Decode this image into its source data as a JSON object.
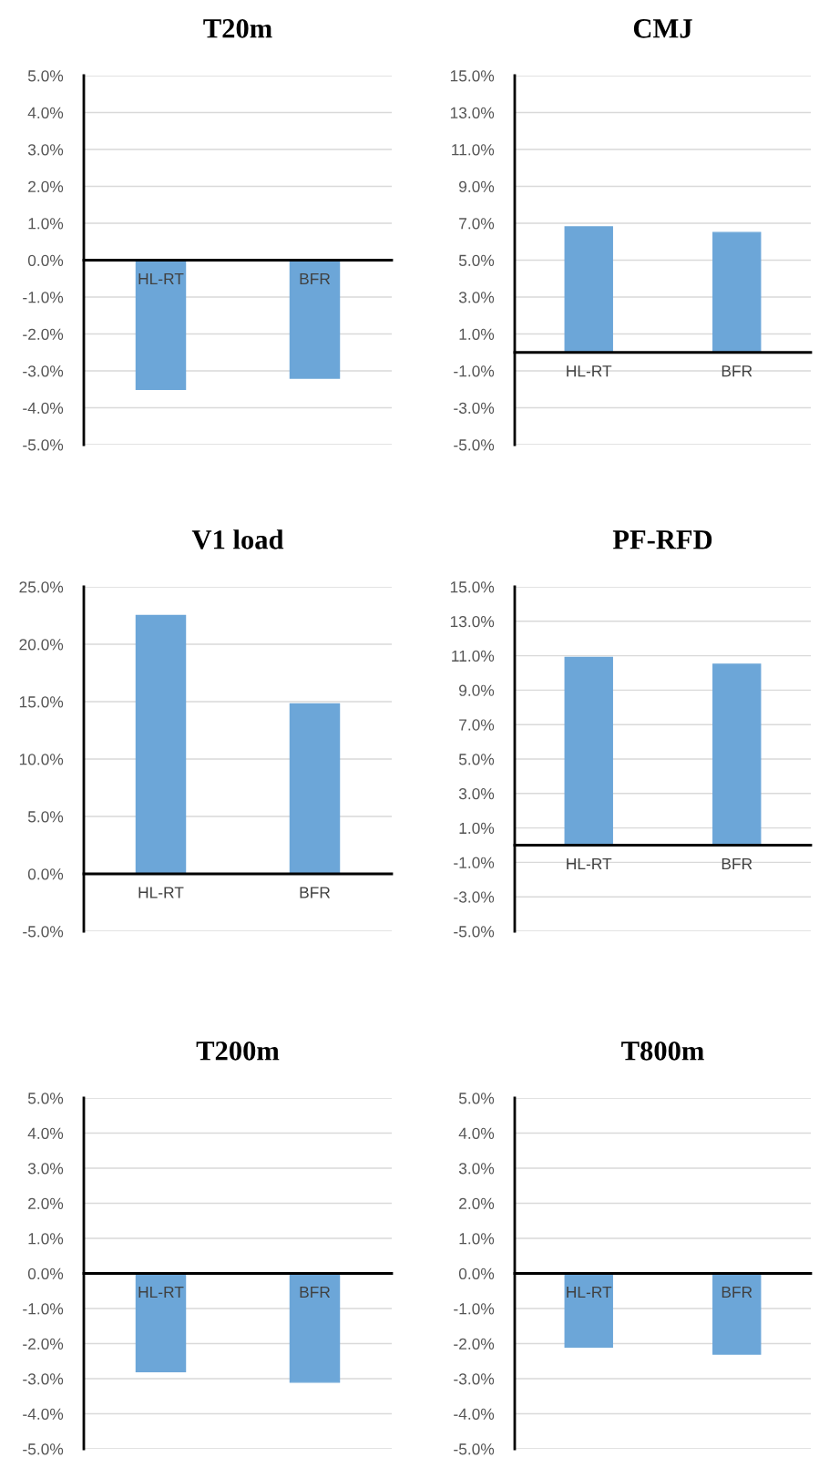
{
  "chart_data": [
    {
      "type": "bar",
      "title": "T20m",
      "categories": [
        "HL-RT",
        "BFR"
      ],
      "values": [
        -3.5,
        -3.2
      ],
      "color": "#6ca6d8",
      "ylim": [
        -5,
        5
      ],
      "yticks": [
        {
          "value": -5,
          "label": "-5.0%"
        },
        {
          "value": -4,
          "label": "-4.0%"
        },
        {
          "value": -3,
          "label": "-3.0%"
        },
        {
          "value": -2,
          "label": "-2.0%"
        },
        {
          "value": -1,
          "label": "-1.0%"
        },
        {
          "value": 0,
          "label": "0.0%"
        },
        {
          "value": 1,
          "label": "1.0%"
        },
        {
          "value": 2,
          "label": "2.0%"
        },
        {
          "value": 3,
          "label": "3.0%"
        },
        {
          "value": 4,
          "label": "4.0%"
        },
        {
          "value": 5,
          "label": "5.0%"
        }
      ],
      "grid": "y"
    },
    {
      "type": "bar",
      "title": "CMJ",
      "categories": [
        "HL-RT",
        "BFR"
      ],
      "values": [
        6.8,
        6.5
      ],
      "color": "#6ca6d8",
      "ylim": [
        -5,
        15
      ],
      "yticks": [
        {
          "value": -5,
          "label": "-5.0%"
        },
        {
          "value": -3,
          "label": "-3.0%"
        },
        {
          "value": -1,
          "label": "-1.0%"
        },
        {
          "value": 1,
          "label": "1.0%"
        },
        {
          "value": 3,
          "label": "3.0%"
        },
        {
          "value": 5,
          "label": "5.0%"
        },
        {
          "value": 7,
          "label": "7.0%"
        },
        {
          "value": 9,
          "label": "9.0%"
        },
        {
          "value": 11,
          "label": "11.0%"
        },
        {
          "value": 13,
          "label": "13.0%"
        },
        {
          "value": 15,
          "label": "15.0%"
        }
      ],
      "grid": "y"
    },
    {
      "type": "bar",
      "title": "V1 load",
      "categories": [
        "HL-RT",
        "BFR"
      ],
      "values": [
        22.5,
        14.8
      ],
      "color": "#6ca6d8",
      "ylim": [
        -5,
        25
      ],
      "yticks": [
        {
          "value": -5,
          "label": "-5.0%"
        },
        {
          "value": 0,
          "label": "0.0%"
        },
        {
          "value": 5,
          "label": "5.0%"
        },
        {
          "value": 10,
          "label": "10.0%"
        },
        {
          "value": 15,
          "label": "15.0%"
        },
        {
          "value": 20,
          "label": "20.0%"
        },
        {
          "value": 25,
          "label": "25.0%"
        }
      ],
      "grid": "y"
    },
    {
      "type": "bar",
      "title": "PF-RFD",
      "categories": [
        "HL-RT",
        "BFR"
      ],
      "values": [
        10.9,
        10.5
      ],
      "color": "#6ca6d8",
      "ylim": [
        -5,
        15
      ],
      "yticks": [
        {
          "value": -5,
          "label": "-5.0%"
        },
        {
          "value": -3,
          "label": "-3.0%"
        },
        {
          "value": -1,
          "label": "-1.0%"
        },
        {
          "value": 1,
          "label": "1.0%"
        },
        {
          "value": 3,
          "label": "3.0%"
        },
        {
          "value": 5,
          "label": "5.0%"
        },
        {
          "value": 7,
          "label": "7.0%"
        },
        {
          "value": 9,
          "label": "9.0%"
        },
        {
          "value": 11,
          "label": "11.0%"
        },
        {
          "value": 13,
          "label": "13.0%"
        },
        {
          "value": 15,
          "label": "15.0%"
        }
      ],
      "grid": "y"
    },
    {
      "type": "bar",
      "title": "T200m",
      "categories": [
        "HL-RT",
        "BFR"
      ],
      "values": [
        -2.8,
        -3.1
      ],
      "color": "#6ca6d8",
      "ylim": [
        -5,
        5
      ],
      "yticks": [
        {
          "value": -5,
          "label": "-5.0%"
        },
        {
          "value": -4,
          "label": "-4.0%"
        },
        {
          "value": -3,
          "label": "-3.0%"
        },
        {
          "value": -2,
          "label": "-2.0%"
        },
        {
          "value": -1,
          "label": "-1.0%"
        },
        {
          "value": 0,
          "label": "0.0%"
        },
        {
          "value": 1,
          "label": "1.0%"
        },
        {
          "value": 2,
          "label": "2.0%"
        },
        {
          "value": 3,
          "label": "3.0%"
        },
        {
          "value": 4,
          "label": "4.0%"
        },
        {
          "value": 5,
          "label": "5.0%"
        }
      ],
      "grid": "y"
    },
    {
      "type": "bar",
      "title": "T800m",
      "categories": [
        "HL-RT",
        "BFR"
      ],
      "values": [
        -2.1,
        -2.3
      ],
      "color": "#6ca6d8",
      "ylim": [
        -5,
        5
      ],
      "yticks": [
        {
          "value": -5,
          "label": "-5.0%"
        },
        {
          "value": -4,
          "label": "-4.0%"
        },
        {
          "value": -3,
          "label": "-3.0%"
        },
        {
          "value": -2,
          "label": "-2.0%"
        },
        {
          "value": -1,
          "label": "-1.0%"
        },
        {
          "value": 0,
          "label": "0.0%"
        },
        {
          "value": 1,
          "label": "1.0%"
        },
        {
          "value": 2,
          "label": "2.0%"
        },
        {
          "value": 3,
          "label": "3.0%"
        },
        {
          "value": 4,
          "label": "4.0%"
        },
        {
          "value": 5,
          "label": "5.0%"
        }
      ],
      "grid": "y"
    }
  ]
}
